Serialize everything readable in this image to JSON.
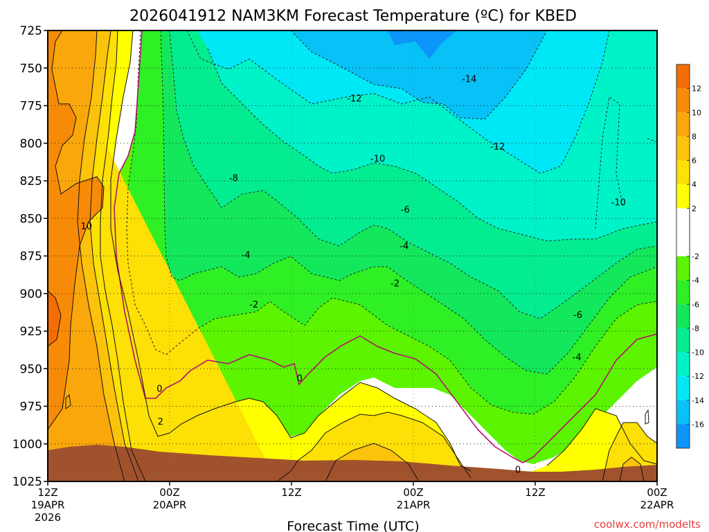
{
  "chart_data": {
    "type": "contour",
    "title": "2026041912 NAM3KM Forecast Temperature (ºC) for KBED",
    "xlabel": "Forecast Time (UTC)",
    "ylabel": "",
    "credit": "coolwx.com/modelts",
    "x_ticks": [
      {
        "line1": "12Z",
        "line2": "19APR",
        "line3": "2026",
        "hour": 0
      },
      {
        "line1": "00Z",
        "line2": "20APR",
        "line3": "",
        "hour": 12
      },
      {
        "line1": "12Z",
        "line2": "",
        "line3": "",
        "hour": 24
      },
      {
        "line1": "00Z",
        "line2": "21APR",
        "line3": "",
        "hour": 36
      },
      {
        "line1": "12Z",
        "line2": "",
        "line3": "",
        "hour": 48
      },
      {
        "line1": "00Z",
        "line2": "22APR",
        "line3": "",
        "hour": 60
      }
    ],
    "xlim": [
      0,
      60
    ],
    "y_ticks": [
      "725",
      "750",
      "775",
      "800",
      "825",
      "850",
      "875",
      "900",
      "925",
      "950",
      "975",
      "1000",
      "1025"
    ],
    "ylim": [
      725,
      1025
    ],
    "colorbar": {
      "ticks": [
        "12",
        "10",
        "8",
        "6",
        "4",
        "2",
        "-2",
        "-4",
        "-6",
        "-8",
        "-10",
        "-12",
        "-14",
        "-16"
      ],
      "bands": [
        {
          "low": 12,
          "high": 14,
          "color": "#f46d04"
        },
        {
          "low": 10,
          "high": 12,
          "color": "#f78b07"
        },
        {
          "low": 8,
          "high": 10,
          "color": "#f9a70a"
        },
        {
          "low": 6,
          "high": 8,
          "color": "#fbc30b"
        },
        {
          "low": 4,
          "high": 6,
          "color": "#fde005"
        },
        {
          "low": 2,
          "high": 4,
          "color": "#ffff00"
        },
        {
          "low": -2,
          "high": 2,
          "color": "#ffffff"
        },
        {
          "low": -4,
          "high": -2,
          "color": "#5cf400"
        },
        {
          "low": -6,
          "high": -4,
          "color": "#2ef024"
        },
        {
          "low": -8,
          "high": -6,
          "color": "#13e85c"
        },
        {
          "low": -10,
          "high": -8,
          "color": "#04ec90"
        },
        {
          "low": -12,
          "high": -10,
          "color": "#00f2c8"
        },
        {
          "low": -14,
          "high": -12,
          "color": "#00e8f5"
        },
        {
          "low": -16,
          "high": -14,
          "color": "#07c1f7"
        },
        {
          "low": -18,
          "high": -16,
          "color": "#0d95f9"
        }
      ]
    },
    "contour_labels": [
      {
        "text": "-14",
        "hour": 41.5,
        "p": 757
      },
      {
        "text": "-12",
        "hour": 30.2,
        "p": 770
      },
      {
        "text": "-12",
        "hour": 44.3,
        "p": 802
      },
      {
        "text": "-10",
        "hour": 32.5,
        "p": 810
      },
      {
        "text": "-10",
        "hour": 56.2,
        "p": 839
      },
      {
        "text": "-8",
        "hour": 18.3,
        "p": 823
      },
      {
        "text": "-6",
        "hour": 35.2,
        "p": 844
      },
      {
        "text": "-6",
        "hour": 52.2,
        "p": 914
      },
      {
        "text": "-4",
        "hour": 19.5,
        "p": 874
      },
      {
        "text": "-4",
        "hour": 35.1,
        "p": 868
      },
      {
        "text": "-4",
        "hour": 52.1,
        "p": 942
      },
      {
        "text": "-2",
        "hour": 20.3,
        "p": 907
      },
      {
        "text": "-2",
        "hour": 34.2,
        "p": 893
      },
      {
        "text": "10",
        "hour": 3.8,
        "p": 855
      },
      {
        "text": "0",
        "hour": 11.0,
        "p": 963
      },
      {
        "text": "0",
        "hour": 24.8,
        "p": 956
      },
      {
        "text": "0",
        "hour": 46.3,
        "p": 1017
      },
      {
        "text": "2",
        "hour": 11.1,
        "p": 985
      }
    ]
  }
}
